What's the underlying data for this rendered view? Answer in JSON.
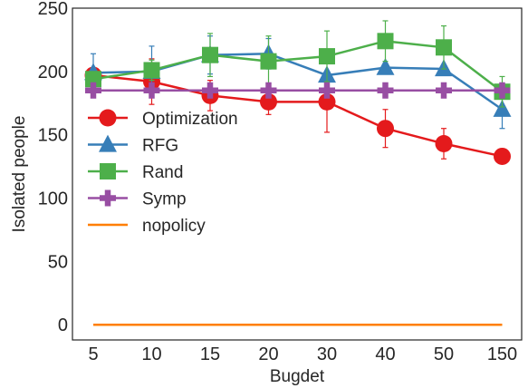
{
  "chart_data": {
    "type": "line",
    "xlabel": "Bugdet",
    "ylabel": "Isolated people",
    "categories": [
      "5",
      "10",
      "15",
      "20",
      "30",
      "40",
      "50",
      "150"
    ],
    "ylim": [
      -12,
      250
    ],
    "yticks": [
      0,
      50,
      100,
      150,
      200,
      250
    ],
    "grid": false,
    "legend_position": "center-left",
    "series": [
      {
        "name": "Optimization",
        "color": "#e41a1c",
        "marker": "circle",
        "values": [
          197,
          192,
          181,
          176,
          176,
          155,
          143,
          133
        ],
        "errors": [
          0,
          18,
          12,
          10,
          24,
          15,
          12,
          0
        ]
      },
      {
        "name": "RFG",
        "color": "#377eb8",
        "marker": "triangle",
        "values": [
          199,
          200,
          213,
          214,
          197,
          203,
          202,
          170
        ],
        "errors": [
          15,
          20,
          15,
          12,
          0,
          0,
          0,
          15
        ]
      },
      {
        "name": "Rand",
        "color": "#4daf4a",
        "marker": "square",
        "values": [
          194,
          201,
          213,
          208,
          212,
          224,
          219,
          184
        ],
        "errors": [
          0,
          8,
          17,
          20,
          20,
          16,
          17,
          12
        ]
      },
      {
        "name": "Symp",
        "color": "#984ea3",
        "marker": "plus",
        "values": [
          185,
          185,
          185,
          185,
          185,
          185,
          185,
          185
        ],
        "errors": [
          0,
          0,
          0,
          0,
          0,
          0,
          0,
          0
        ]
      },
      {
        "name": "nopolicy",
        "color": "#ff7f00",
        "marker": "none",
        "values": [
          0,
          0,
          0,
          0,
          0,
          0,
          0,
          0
        ],
        "errors": [
          0,
          0,
          0,
          0,
          0,
          0,
          0,
          0
        ]
      }
    ]
  }
}
